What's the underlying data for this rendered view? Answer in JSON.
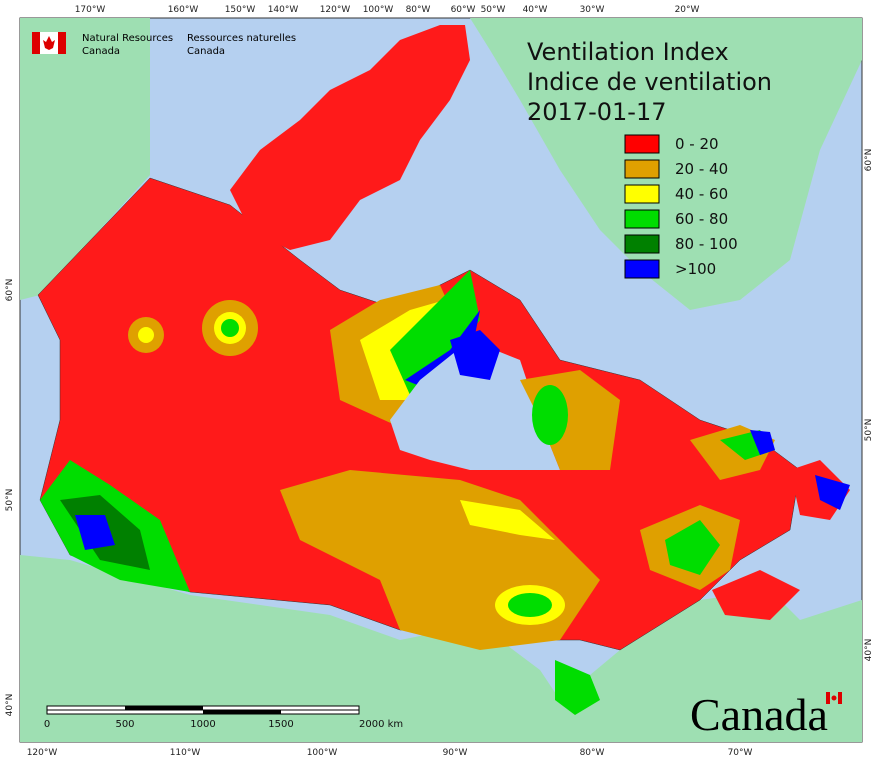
{
  "header": {
    "agency_en": [
      "Natural Resources",
      "Canada"
    ],
    "agency_fr": [
      "Ressources naturelles",
      "Canada"
    ]
  },
  "title": [
    "Ventilation Index",
    "Indice de ventilation",
    "2017-01-17"
  ],
  "legend": [
    {
      "label": "0 - 20",
      "color": "#ff0000"
    },
    {
      "label": "20 - 40",
      "color": "#dfa000"
    },
    {
      "label": "40 - 60",
      "color": "#ffff00"
    },
    {
      "label": "60 - 80",
      "color": "#00dd00"
    },
    {
      "label": "80 - 100",
      "color": "#008000"
    },
    {
      "label": ">100",
      "color": "#0000ff"
    }
  ],
  "top_longitudes": [
    "170°W",
    "160°W",
    "150°W",
    "140°W",
    "120°W",
    "100°W",
    "80°W",
    "60°W",
    "50°W",
    "40°W",
    "30°W",
    "20°W"
  ],
  "bottom_longitudes": [
    "120°W",
    "110°W",
    "100°W",
    "90°W",
    "80°W",
    "70°W"
  ],
  "left_latitudes": [
    "60°N",
    "50°N",
    "40°N"
  ],
  "right_latitudes": [
    "60°N",
    "50°N",
    "40°N"
  ],
  "scale_bar": [
    "0",
    "500",
    "1000",
    "1500",
    "2000 km"
  ],
  "wordmark": "Canada"
}
